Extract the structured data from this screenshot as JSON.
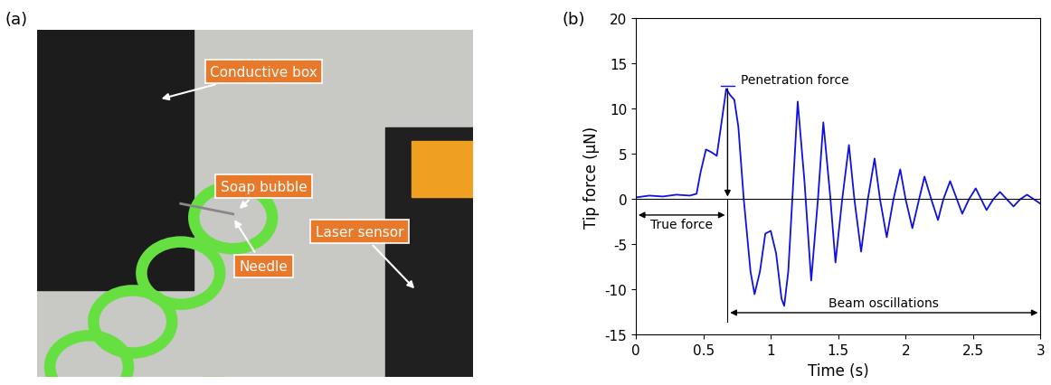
{
  "panel_labels": [
    "(a)",
    "(b)"
  ],
  "photo_callouts": [
    "Conductive box",
    "Soap bubble",
    "Laser sensor",
    "Needle"
  ],
  "chart_data": {
    "type": "line",
    "x_label": "Time (s)",
    "y_label": "Tip force (μN)",
    "xlim": [
      0,
      3
    ],
    "ylim": [
      -15,
      20
    ],
    "xticks": [
      0,
      0.5,
      1,
      1.5,
      2,
      2.5,
      3
    ],
    "yticks": [
      -15,
      -10,
      -5,
      0,
      5,
      10,
      15,
      20
    ],
    "reference_line": 0,
    "penetration_force": 12.5,
    "penetration_time": 0.68,
    "annotations": [
      "Penetration force",
      "True force",
      "Beam oscillations"
    ],
    "series": [
      {
        "name": "Tip force",
        "color": "#1010e0",
        "x": [
          0,
          0.1,
          0.2,
          0.3,
          0.4,
          0.45,
          0.48,
          0.52,
          0.56,
          0.6,
          0.64,
          0.67,
          0.7,
          0.73,
          0.76,
          0.8,
          0.85,
          0.88,
          0.92,
          0.96,
          1.0,
          1.04,
          1.08,
          1.1,
          1.13,
          1.16,
          1.2,
          1.25,
          1.3,
          1.35,
          1.39,
          1.44,
          1.48,
          1.53,
          1.58,
          1.62,
          1.67,
          1.72,
          1.77,
          1.81,
          1.86,
          1.91,
          1.96,
          2.0,
          2.05,
          2.1,
          2.14,
          2.19,
          2.24,
          2.28,
          2.33,
          2.38,
          2.42,
          2.47,
          2.52,
          2.56,
          2.6,
          2.65,
          2.7,
          2.75,
          2.8,
          2.85,
          2.9,
          2.95,
          3.0
        ],
        "values": [
          0.2,
          0.4,
          0.3,
          0.5,
          0.4,
          0.6,
          3.0,
          5.5,
          5.2,
          4.8,
          9.0,
          12.2,
          11.5,
          11.0,
          8.0,
          0.0,
          -8.0,
          -10.5,
          -8.0,
          -3.8,
          -3.5,
          -6.0,
          -11.0,
          -11.8,
          -8.0,
          0.0,
          10.8,
          2.0,
          -9.0,
          0.0,
          8.5,
          0.5,
          -7.0,
          0.0,
          6.0,
          0.0,
          -5.8,
          0.0,
          4.5,
          0.0,
          -4.2,
          0.0,
          3.3,
          0.0,
          -3.2,
          0.0,
          2.5,
          0.0,
          -2.3,
          0.0,
          2.0,
          0.0,
          -1.6,
          0.0,
          1.2,
          0.0,
          -1.2,
          0.0,
          0.8,
          0.0,
          -0.8,
          0.0,
          0.5,
          0.0,
          -0.5
        ]
      }
    ]
  }
}
